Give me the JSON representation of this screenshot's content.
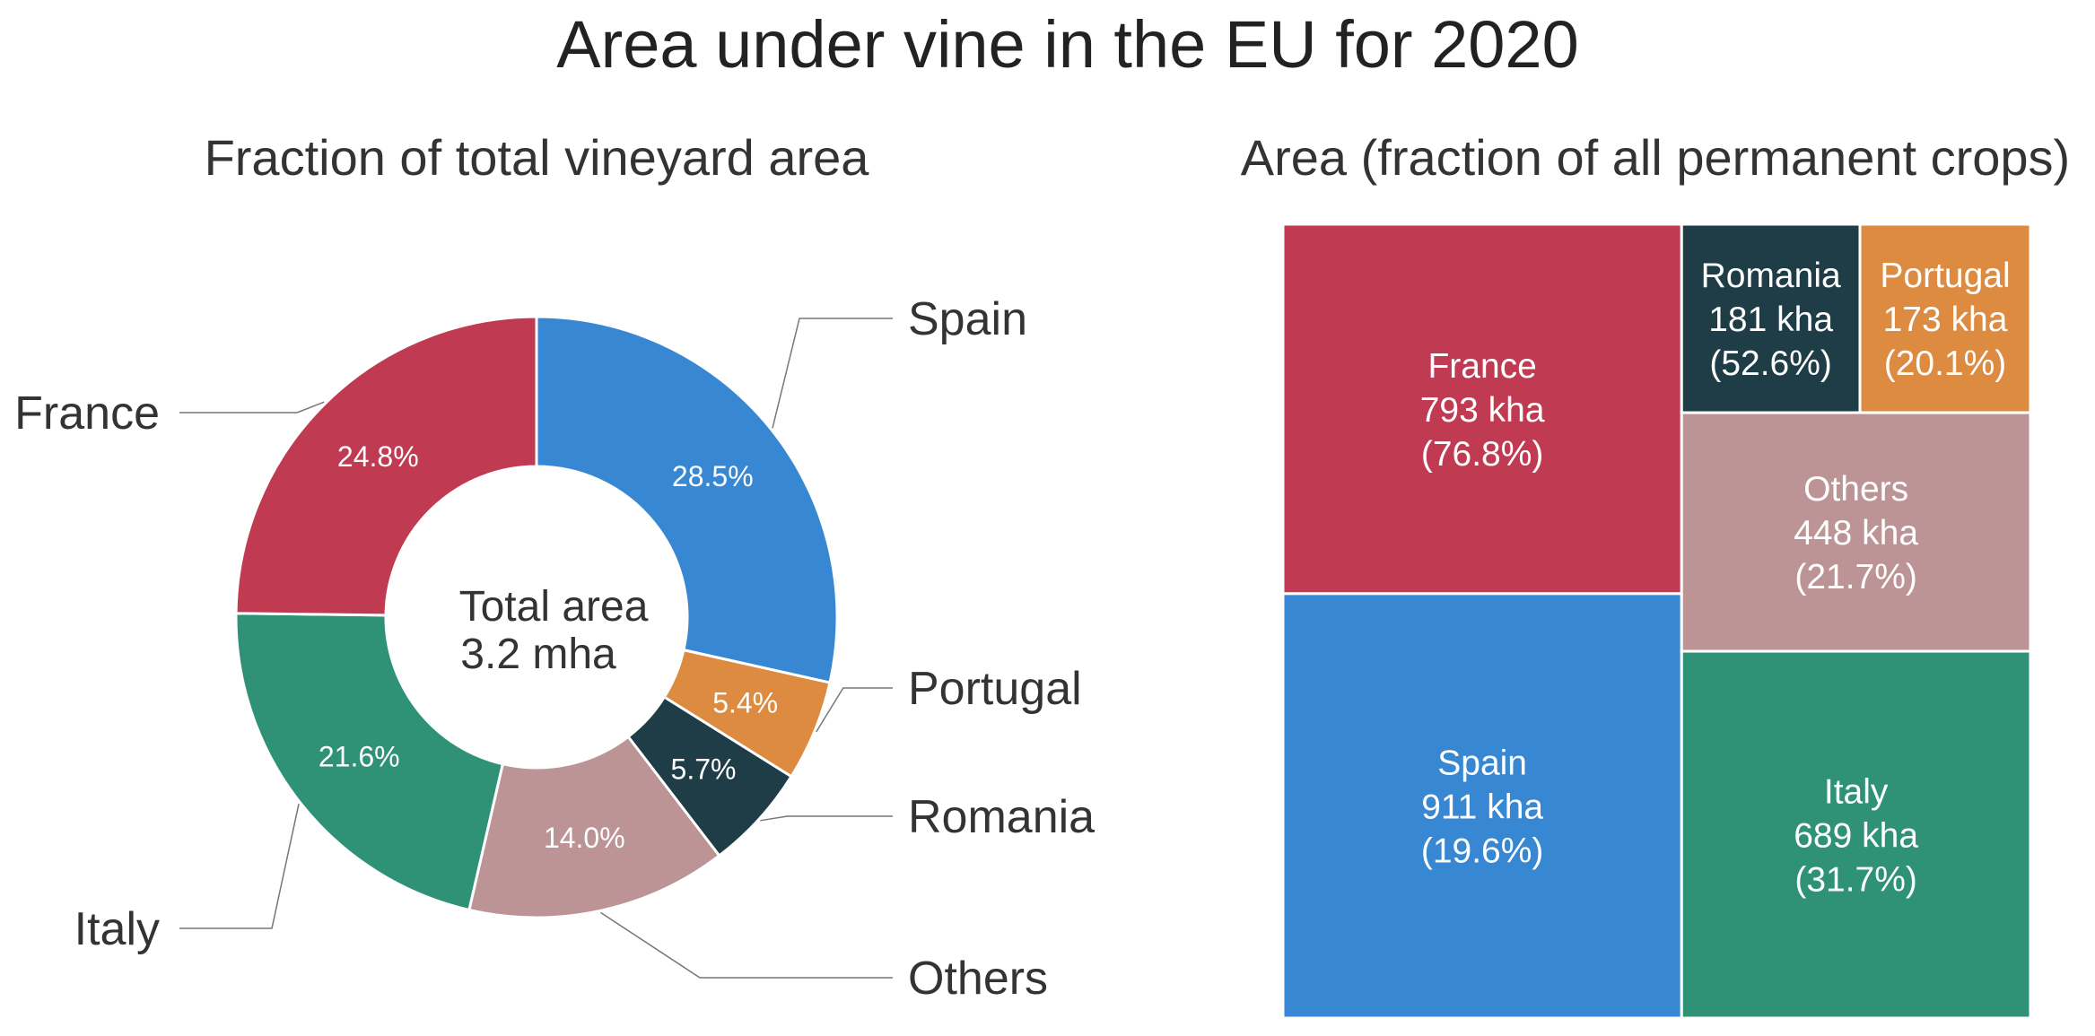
{
  "title": "Area under vine in the EU for 2020",
  "chart_data": [
    {
      "type": "pie",
      "variant": "donut",
      "title": "Fraction of total vineyard area",
      "center_label": [
        "Total area",
        "3.2 mha"
      ],
      "slices": [
        {
          "label": "Spain",
          "value": 28.5,
          "display": "28.5%",
          "color": "#3787d2"
        },
        {
          "label": "Portugal",
          "value": 5.4,
          "display": "5.4%",
          "color": "#dc8b41"
        },
        {
          "label": "Romania",
          "value": 5.7,
          "display": "5.7%",
          "color": "#1f3d47"
        },
        {
          "label": "Others",
          "value": 14.0,
          "display": "14.0%",
          "color": "#bc9495"
        },
        {
          "label": "Italy",
          "value": 21.6,
          "display": "21.6%",
          "color": "#2f9277"
        },
        {
          "label": "France",
          "value": 24.8,
          "display": "24.8%",
          "color": "#c03a52"
        }
      ]
    },
    {
      "type": "treemap",
      "title": "Area (fraction of all permanent crops)",
      "units": "kha",
      "cells": [
        {
          "label": "France",
          "value": 793,
          "value_text": "793 kha",
          "fraction": 76.8,
          "fraction_text": "(76.8%)",
          "color": "#c03a52"
        },
        {
          "label": "Spain",
          "value": 911,
          "value_text": "911 kha",
          "fraction": 19.6,
          "fraction_text": "(19.6%)",
          "color": "#3787d2"
        },
        {
          "label": "Romania",
          "value": 181,
          "value_text": "181 kha",
          "fraction": 52.6,
          "fraction_text": "(52.6%)",
          "color": "#1f3d47"
        },
        {
          "label": "Portugal",
          "value": 173,
          "value_text": "173 kha",
          "fraction": 20.1,
          "fraction_text": "(20.1%)",
          "color": "#dc8b41"
        },
        {
          "label": "Others",
          "value": 448,
          "value_text": "448 kha",
          "fraction": 21.7,
          "fraction_text": "(21.7%)",
          "color": "#bc9495"
        },
        {
          "label": "Italy",
          "value": 689,
          "value_text": "689 kha",
          "fraction": 31.7,
          "fraction_text": "(31.7%)",
          "color": "#2f9277"
        }
      ]
    }
  ]
}
